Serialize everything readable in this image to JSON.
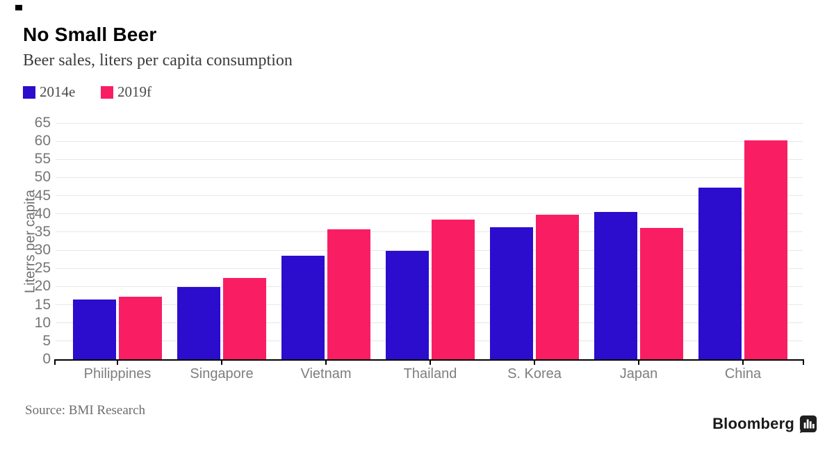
{
  "header": {
    "title": "No Small Beer",
    "subtitle": "Beer sales, liters per capita consumption"
  },
  "chart_data": {
    "type": "bar",
    "title": "No Small Beer",
    "subtitle": "Beer sales, liters per capita consumption",
    "categories": [
      "Philippines",
      "Singapore",
      "Vietnam",
      "Thailand",
      "S. Korea",
      "Japan",
      "China"
    ],
    "series": [
      {
        "name": "2014e",
        "color": "#2c0ccd",
        "values": [
          16.4,
          19.9,
          28.4,
          29.9,
          36.4,
          40.5,
          47.2
        ]
      },
      {
        "name": "2019f",
        "color": "#f91e64",
        "values": [
          17.2,
          22.4,
          35.7,
          38.4,
          39.8,
          36.2,
          60.3
        ]
      }
    ],
    "xlabel": "",
    "ylabel": "Literrs per capita",
    "ylim": [
      0,
      65
    ],
    "ytick_step": 5,
    "grid": true,
    "legend_position": "top-left"
  },
  "footer": {
    "source": "Source: BMI Research",
    "brand": "Bloomberg"
  },
  "colors": {
    "series_2014e": "#2c0ccd",
    "series_2019f": "#f91e64",
    "grid": "#e7e7e7",
    "axis": "#000000",
    "tick_label": "#767676",
    "category_label": "#7e7e7e",
    "subtitle_text": "#3c3c3c",
    "source_text": "#6d6d6d",
    "brand_text": "#1a1a1a"
  }
}
